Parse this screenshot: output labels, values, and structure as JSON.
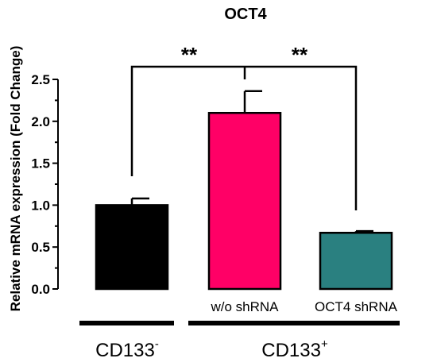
{
  "chart_data": {
    "type": "bar",
    "title": "OCT4",
    "ylabel": "Relative mRNA expression (Fold Change)",
    "xlabel": "",
    "ylim": [
      0,
      2.5
    ],
    "yticks": [
      "0.0",
      "0.5",
      "1.0",
      "1.5",
      "2.0",
      "2.5"
    ],
    "categories": [
      "",
      "w/o shRNA",
      "OCT4 shRNA"
    ],
    "values": [
      1.0,
      2.1,
      0.67
    ],
    "errors": [
      0.08,
      0.26,
      0.02
    ],
    "colors": [
      "#000000",
      "#ff0066",
      "#2a8080"
    ],
    "groups": [
      {
        "label": "CD133",
        "superscript": "-"
      },
      {
        "label": "CD133",
        "superscript": "+"
      }
    ],
    "comparisons": [
      {
        "from": 0,
        "to": 1,
        "label": "**"
      },
      {
        "from": 1,
        "to": 2,
        "label": "**"
      }
    ],
    "grid": false,
    "legend": "none"
  }
}
